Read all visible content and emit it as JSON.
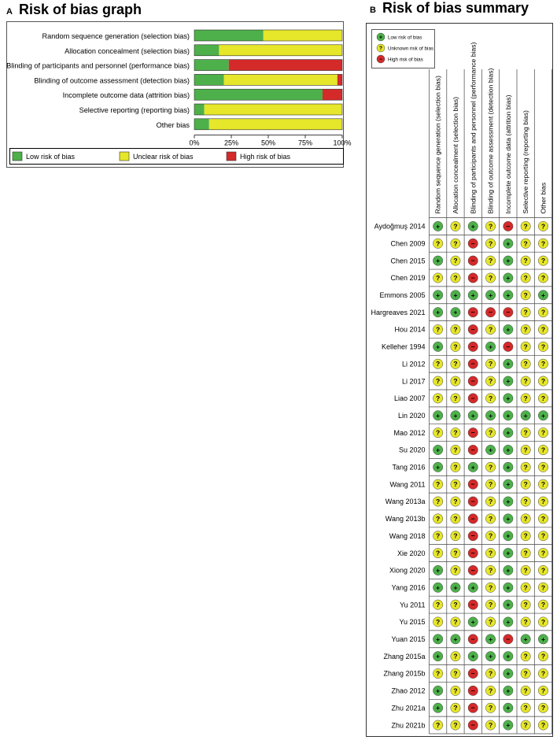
{
  "panels": {
    "a": {
      "letter": "A",
      "title": "Risk of bias graph"
    },
    "b": {
      "letter": "B",
      "title": "Risk of bias summary"
    }
  },
  "colors": {
    "low": "#4db04a",
    "unclear": "#e6e62a",
    "high": "#d42a2a",
    "border": "#000000"
  },
  "chart_data": [
    {
      "type": "bar",
      "orientation": "horizontal",
      "stacked": true,
      "title": "Risk of bias graph",
      "categories": [
        "Random sequence generation (selection bias)",
        "Allocation concealment (selection bias)",
        "Blinding of participants and personnel (performance bias)",
        "Blinding of outcome assessment (detection bias)",
        "Incomplete outcome data (attrition bias)",
        "Selective reporting (reporting bias)",
        "Other bias"
      ],
      "series": [
        {
          "name": "Low risk of bias",
          "key": "low",
          "values": [
            46.7,
            16.7,
            23.3,
            20.0,
            86.7,
            6.7,
            10.0
          ]
        },
        {
          "name": "Unclear risk of bias",
          "key": "unclear",
          "values": [
            53.3,
            83.3,
            0.0,
            76.7,
            0.0,
            93.3,
            90.0
          ]
        },
        {
          "name": "High risk of bias",
          "key": "high",
          "values": [
            0.0,
            0.0,
            76.7,
            3.3,
            13.3,
            0.0,
            0.0
          ]
        }
      ],
      "x_ticks": [
        "0%",
        "25%",
        "50%",
        "75%",
        "100%"
      ],
      "xlim": [
        0,
        100
      ],
      "legend": [
        "Low risk of bias",
        "Unclear risk of bias",
        "High risk of bias"
      ],
      "legend_position": "bottom"
    },
    {
      "type": "table",
      "title": "Risk of bias summary",
      "legend": [
        {
          "key": "low",
          "symbol": "+",
          "label": "Low risk of bias"
        },
        {
          "key": "unclear",
          "symbol": "?",
          "label": "Unknown risk of bias"
        },
        {
          "key": "high",
          "symbol": "−",
          "label": "High risk of bias"
        }
      ],
      "columns": [
        "Random sequence generation (selection bias)",
        "Allocation concealment (selection bias)",
        "Blinding of participants and personnel (performance bias)",
        "Blinding of outcome assessment (detection bias)",
        "Incomplete outcome data (attrition bias)",
        "Selective reporting (reporting bias)",
        "Other bias"
      ],
      "studies": [
        {
          "name": "Aydoğmuş 2014",
          "ratings": [
            "low",
            "unclear",
            "low",
            "unclear",
            "high",
            "unclear",
            "unclear"
          ]
        },
        {
          "name": "Chen 2009",
          "ratings": [
            "unclear",
            "unclear",
            "high",
            "unclear",
            "low",
            "unclear",
            "unclear"
          ]
        },
        {
          "name": "Chen 2015",
          "ratings": [
            "low",
            "unclear",
            "high",
            "unclear",
            "low",
            "unclear",
            "unclear"
          ]
        },
        {
          "name": "Chen 2019",
          "ratings": [
            "unclear",
            "unclear",
            "high",
            "unclear",
            "low",
            "unclear",
            "unclear"
          ]
        },
        {
          "name": "Emmons 2005",
          "ratings": [
            "low",
            "low",
            "low",
            "low",
            "low",
            "unclear",
            "low"
          ]
        },
        {
          "name": "Hargreaves 2021",
          "ratings": [
            "low",
            "low",
            "high",
            "high",
            "high",
            "unclear",
            "unclear"
          ]
        },
        {
          "name": "Hou 2014",
          "ratings": [
            "unclear",
            "unclear",
            "high",
            "unclear",
            "low",
            "unclear",
            "unclear"
          ]
        },
        {
          "name": "Kelleher 1994",
          "ratings": [
            "low",
            "unclear",
            "high",
            "low",
            "high",
            "unclear",
            "unclear"
          ]
        },
        {
          "name": "Li 2012",
          "ratings": [
            "unclear",
            "unclear",
            "high",
            "unclear",
            "low",
            "unclear",
            "unclear"
          ]
        },
        {
          "name": "Li 2017",
          "ratings": [
            "unclear",
            "unclear",
            "high",
            "unclear",
            "low",
            "unclear",
            "unclear"
          ]
        },
        {
          "name": "Liao 2007",
          "ratings": [
            "unclear",
            "unclear",
            "high",
            "unclear",
            "low",
            "unclear",
            "unclear"
          ]
        },
        {
          "name": "Lin 2020",
          "ratings": [
            "low",
            "low",
            "low",
            "low",
            "low",
            "low",
            "low"
          ]
        },
        {
          "name": "Mao 2012",
          "ratings": [
            "unclear",
            "unclear",
            "high",
            "unclear",
            "low",
            "unclear",
            "unclear"
          ]
        },
        {
          "name": "Su 2020",
          "ratings": [
            "low",
            "unclear",
            "high",
            "low",
            "low",
            "unclear",
            "unclear"
          ]
        },
        {
          "name": "Tang 2016",
          "ratings": [
            "low",
            "unclear",
            "low",
            "unclear",
            "low",
            "unclear",
            "unclear"
          ]
        },
        {
          "name": "Wang 2011",
          "ratings": [
            "unclear",
            "unclear",
            "high",
            "unclear",
            "low",
            "unclear",
            "unclear"
          ]
        },
        {
          "name": "Wang 2013a",
          "ratings": [
            "unclear",
            "unclear",
            "high",
            "unclear",
            "low",
            "unclear",
            "unclear"
          ]
        },
        {
          "name": "Wang 2013b",
          "ratings": [
            "unclear",
            "unclear",
            "high",
            "unclear",
            "low",
            "unclear",
            "unclear"
          ]
        },
        {
          "name": "Wang 2018",
          "ratings": [
            "unclear",
            "unclear",
            "high",
            "unclear",
            "low",
            "unclear",
            "unclear"
          ]
        },
        {
          "name": "Xie 2020",
          "ratings": [
            "unclear",
            "unclear",
            "high",
            "unclear",
            "low",
            "unclear",
            "unclear"
          ]
        },
        {
          "name": "Xiong 2020",
          "ratings": [
            "low",
            "unclear",
            "high",
            "unclear",
            "low",
            "unclear",
            "unclear"
          ]
        },
        {
          "name": "Yang 2016",
          "ratings": [
            "low",
            "low",
            "low",
            "unclear",
            "low",
            "unclear",
            "unclear"
          ]
        },
        {
          "name": "Yu 2011",
          "ratings": [
            "unclear",
            "unclear",
            "high",
            "unclear",
            "low",
            "unclear",
            "unclear"
          ]
        },
        {
          "name": "Yu 2015",
          "ratings": [
            "unclear",
            "unclear",
            "low",
            "unclear",
            "low",
            "unclear",
            "unclear"
          ]
        },
        {
          "name": "Yuan 2015",
          "ratings": [
            "low",
            "low",
            "high",
            "low",
            "high",
            "low",
            "low"
          ]
        },
        {
          "name": "Zhang 2015a",
          "ratings": [
            "low",
            "unclear",
            "low",
            "low",
            "low",
            "unclear",
            "unclear"
          ]
        },
        {
          "name": "Zhang 2015b",
          "ratings": [
            "unclear",
            "unclear",
            "high",
            "unclear",
            "low",
            "unclear",
            "unclear"
          ]
        },
        {
          "name": "Zhao 2012",
          "ratings": [
            "low",
            "unclear",
            "high",
            "unclear",
            "low",
            "unclear",
            "unclear"
          ]
        },
        {
          "name": "Zhu 2021a",
          "ratings": [
            "low",
            "unclear",
            "high",
            "unclear",
            "low",
            "unclear",
            "unclear"
          ]
        },
        {
          "name": "Zhu 2021b",
          "ratings": [
            "unclear",
            "unclear",
            "high",
            "unclear",
            "low",
            "unclear",
            "unclear"
          ]
        }
      ]
    }
  ]
}
